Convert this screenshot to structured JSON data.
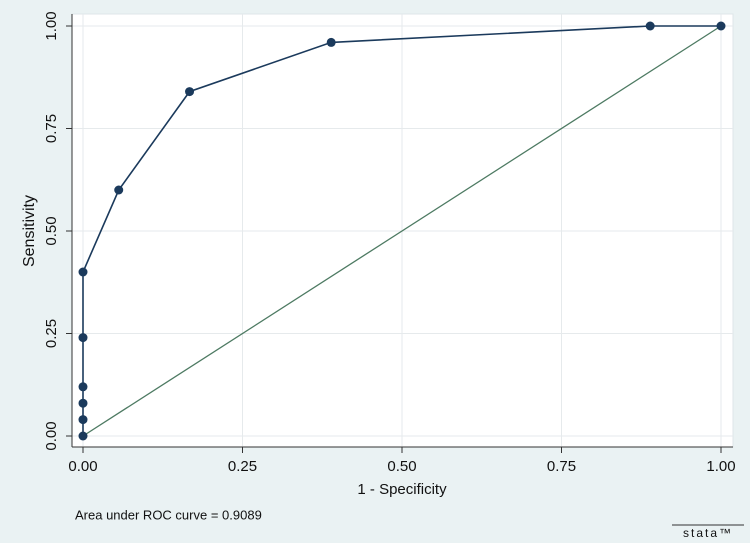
{
  "chart_data": {
    "type": "line",
    "xlabel": "1 - Specificity",
    "ylabel": "Sensitivity",
    "annotation": "Area under ROC curve = 0.9089",
    "logo": "stata™",
    "series": [
      {
        "color": "#1b3a5c",
        "x": [
          0,
          0,
          0,
          0,
          0,
          0,
          0.056,
          0.167,
          0.389,
          0.889,
          1
        ],
        "values": [
          0,
          0.04,
          0.08,
          0.12,
          0.24,
          0.4,
          0.6,
          0.84,
          0.96,
          1,
          1
        ]
      }
    ],
    "reference_line": {
      "color": "#4d7a62",
      "x": [
        0,
        1
      ],
      "values": [
        0,
        1
      ]
    },
    "xlim": [
      0,
      1
    ],
    "ylim": [
      0,
      1
    ],
    "xticks": [
      {
        "value": 0,
        "label": "0.00"
      },
      {
        "value": 0.25,
        "label": "0.25"
      },
      {
        "value": 0.5,
        "label": "0.50"
      },
      {
        "value": 0.75,
        "label": "0.75"
      },
      {
        "value": 1,
        "label": "1.00"
      }
    ],
    "yticks": [
      {
        "value": 0,
        "label": "0.00"
      },
      {
        "value": 0.25,
        "label": "0.25"
      },
      {
        "value": 0.5,
        "label": "0.50"
      },
      {
        "value": 0.75,
        "label": "0.75"
      },
      {
        "value": 1,
        "label": "1.00"
      }
    ],
    "grid": true
  }
}
